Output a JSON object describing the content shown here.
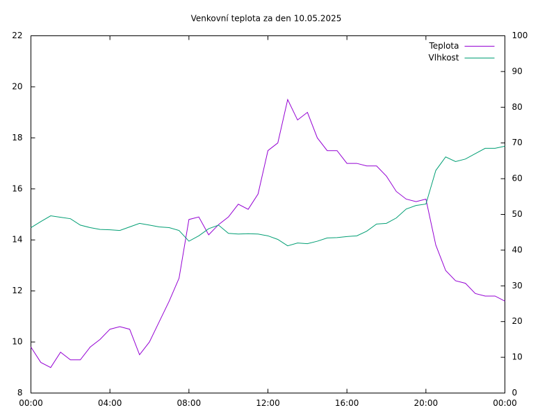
{
  "chart_data": {
    "type": "line",
    "title": "Venkovní teplota za den 10.05.2025",
    "x": [
      0,
      0.5,
      1,
      1.5,
      2,
      2.5,
      3,
      3.5,
      4,
      4.5,
      5,
      5.5,
      6,
      6.5,
      7,
      7.5,
      8,
      8.5,
      9,
      9.5,
      10,
      10.5,
      11,
      11.5,
      12,
      12.5,
      13,
      13.5,
      14,
      14.5,
      15,
      15.5,
      16,
      16.5,
      17,
      17.5,
      18,
      18.5,
      19,
      19.5,
      20,
      20.5,
      21,
      21.5,
      22,
      22.5,
      23,
      23.5,
      24
    ],
    "series": [
      {
        "name": "Teplota",
        "color": "#9400d3",
        "values": [
          9.8,
          9.2,
          9.0,
          9.6,
          9.3,
          9.3,
          9.8,
          10.1,
          10.5,
          10.6,
          10.5,
          9.5,
          10.0,
          10.8,
          11.6,
          12.5,
          14.8,
          14.9,
          14.2,
          14.6,
          14.9,
          15.4,
          15.2,
          15.8,
          17.5,
          17.8,
          19.5,
          18.7,
          19.0,
          18.0,
          17.5,
          17.5,
          17.0,
          17.0,
          16.9,
          16.9,
          16.5,
          15.9,
          15.6,
          15.5,
          15.6,
          13.8,
          12.8,
          12.4,
          12.3,
          11.9,
          11.8,
          11.8,
          11.6
        ]
      },
      {
        "name": "Vlhkost",
        "color": "#009e73",
        "axis": "y2",
        "values": [
          46.3,
          48,
          49.6,
          49.2,
          48.8,
          47,
          46.3,
          45.8,
          45.7,
          45.5,
          46.5,
          47.5,
          47,
          46.5,
          46.3,
          45.5,
          42.5,
          44,
          46,
          47,
          44.7,
          44.5,
          44.6,
          44.5,
          44,
          43,
          41.2,
          42,
          41.8,
          42.5,
          43.4,
          43.5,
          43.8,
          44,
          45.3,
          47.3,
          47.5,
          49,
          51.5,
          52.5,
          52.9,
          62.3,
          66.1,
          64.8,
          65.5,
          67,
          68.5,
          68.5,
          69.1
        ]
      }
    ],
    "xlim": [
      0,
      24
    ],
    "xticks": [
      {
        "value": 0,
        "label": "00:00"
      },
      {
        "value": 4,
        "label": "04:00"
      },
      {
        "value": 8,
        "label": "08:00"
      },
      {
        "value": 12,
        "label": "12:00"
      },
      {
        "value": 16,
        "label": "16:00"
      },
      {
        "value": 20,
        "label": "20:00"
      },
      {
        "value": 24,
        "label": "00:00"
      }
    ],
    "ylim": [
      8,
      22
    ],
    "yticks": [
      8,
      10,
      12,
      14,
      16,
      18,
      20,
      22
    ],
    "y2lim": [
      0,
      100
    ],
    "y2ticks": [
      0,
      10,
      20,
      30,
      40,
      50,
      60,
      70,
      80,
      90,
      100
    ],
    "legend": "top-right",
    "grid": false
  }
}
